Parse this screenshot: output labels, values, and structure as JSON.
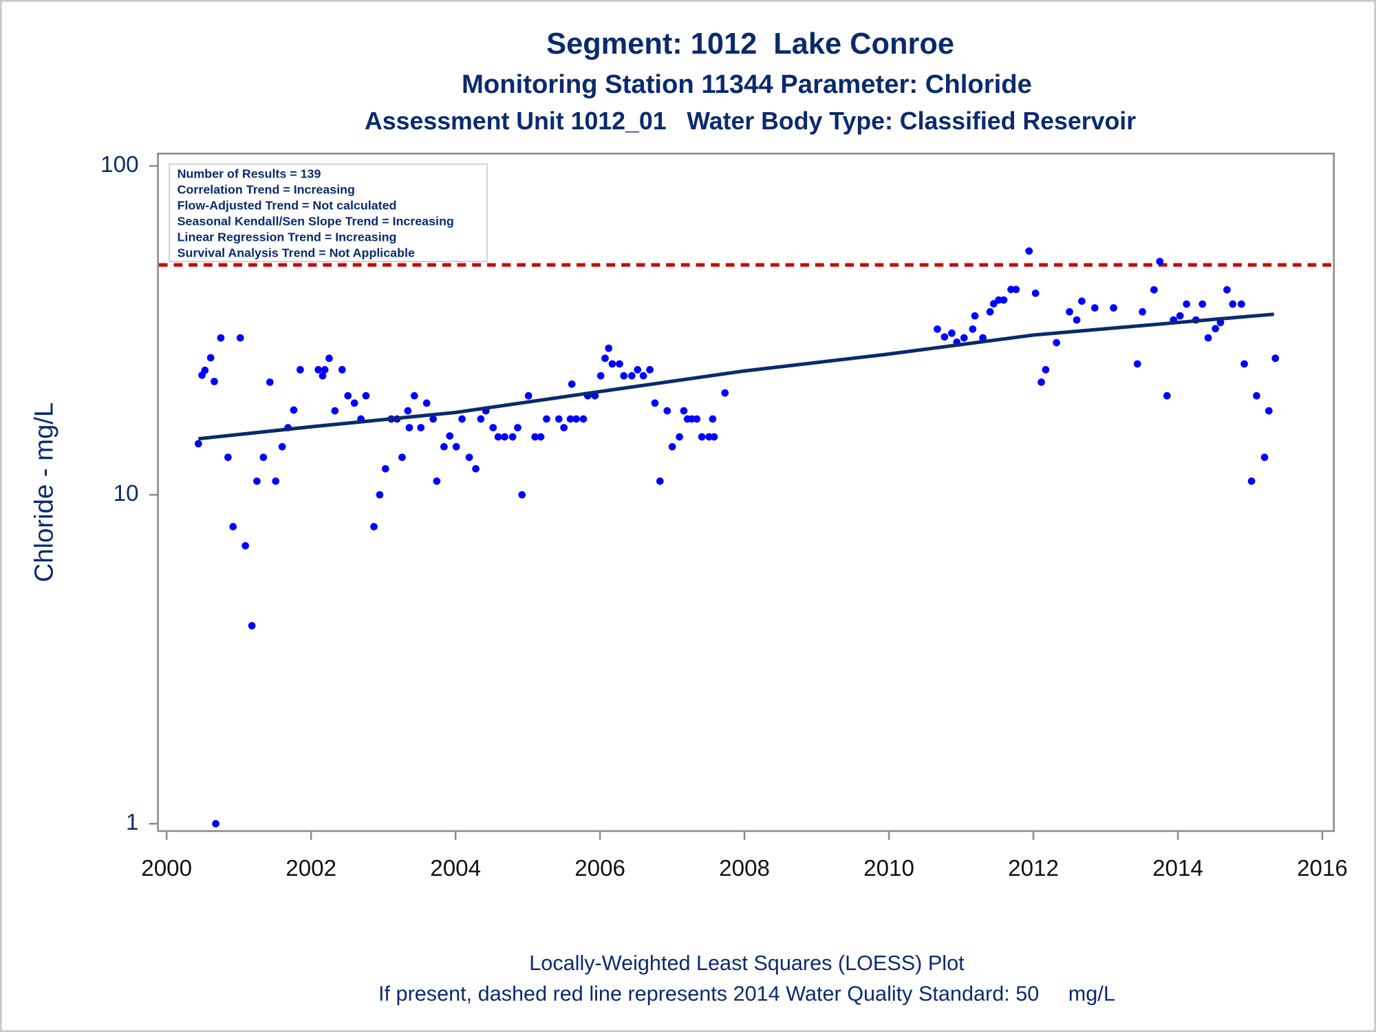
{
  "chart_data": {
    "type": "scatter",
    "title": "Segment: 1012  Lake Conroe",
    "subtitle": "Monitoring Station 11344 Parameter: Chloride",
    "subtitle2": "Assessment Unit 1012_01   Water Body Type: Classified Reservoir",
    "y_label": "Chloride - mg/L",
    "footnotes": [
      "Locally-Weighted Least Squares (LOESS) Plot",
      "If present, dashed red line represents 2014 Water Quality Standard: 50     mg/L"
    ],
    "info_box": [
      "Number of Results = 139",
      "Correlation Trend = Increasing",
      "Flow-Adjusted Trend = Not calculated",
      "Seasonal Kendall/Sen Slope Trend = Increasing",
      "Linear Regression Trend = Increasing",
      "Survival Analysis Trend = Not Applicable"
    ],
    "y_scale": "log",
    "xlim": [
      1999.88,
      2016.16
    ],
    "ylim": [
      0.95,
      109
    ],
    "xticks": [
      2000,
      2002,
      2004,
      2006,
      2008,
      2010,
      2012,
      2014,
      2016
    ],
    "yticks": [
      1,
      10,
      100
    ],
    "reference_line": {
      "value": 50,
      "color": "#cc0000",
      "style": "dashed"
    },
    "points": {
      "color": "#0000ff",
      "x": [
        2000.44,
        2000.49,
        2000.53,
        2000.61,
        2000.66,
        2000.68,
        2000.75,
        2000.85,
        2000.92,
        2001.02,
        2001.09,
        2001.18,
        2001.25,
        2001.34,
        2001.43,
        2001.51,
        2001.6,
        2001.68,
        2001.76,
        2001.85,
        2002.1,
        2002.16,
        2002.19,
        2002.25,
        2002.33,
        2002.43,
        2002.51,
        2002.6,
        2002.69,
        2002.76,
        2002.87,
        2002.95,
        2003.03,
        2003.11,
        2003.19,
        2003.26,
        2003.34,
        2003.36,
        2003.43,
        2003.52,
        2003.6,
        2003.69,
        2003.74,
        2003.84,
        2003.92,
        2004.01,
        2004.09,
        2004.19,
        2004.28,
        2004.35,
        2004.42,
        2004.52,
        2004.59,
        2004.68,
        2004.79,
        2004.86,
        2004.92,
        2005.01,
        2005.1,
        2005.18,
        2005.26,
        2005.43,
        2005.5,
        2005.59,
        2005.61,
        2005.67,
        2005.77,
        2005.83,
        2005.93,
        2006.01,
        2006.07,
        2006.12,
        2006.17,
        2006.27,
        2006.33,
        2006.44,
        2006.52,
        2006.6,
        2006.69,
        2006.76,
        2006.83,
        2006.93,
        2007.0,
        2007.1,
        2007.16,
        2007.21,
        2007.27,
        2007.34,
        2007.41,
        2007.51,
        2007.56,
        2007.58,
        2007.73,
        2010.67,
        2010.77,
        2010.87,
        2010.94,
        2011.04,
        2011.16,
        2011.19,
        2011.3,
        2011.4,
        2011.45,
        2011.52,
        2011.59,
        2011.69,
        2011.76,
        2011.94,
        2012.03,
        2012.11,
        2012.17,
        2012.32,
        2012.5,
        2012.6,
        2012.67,
        2012.85,
        2013.11,
        2013.44,
        2013.51,
        2013.67,
        2013.75,
        2013.85,
        2013.94,
        2014.03,
        2014.12,
        2014.25,
        2014.34,
        2014.42,
        2014.52,
        2014.59,
        2014.68,
        2014.76,
        2014.88,
        2014.92,
        2015.02,
        2015.09,
        2015.2,
        2015.26,
        2015.35
      ],
      "y": [
        14.3,
        23.1,
        23.9,
        26.1,
        22.1,
        1,
        30,
        13,
        8,
        30,
        7,
        4,
        11,
        13,
        22,
        11,
        14,
        16,
        18.1,
        24,
        24,
        23,
        24,
        26,
        18,
        24,
        20,
        19,
        17,
        20,
        8,
        10,
        12,
        17,
        17,
        13,
        18,
        16,
        20,
        16,
        19,
        17,
        11,
        14,
        15.1,
        14,
        17,
        13,
        12,
        17,
        18,
        16,
        15,
        15,
        15,
        16,
        10,
        20,
        15,
        15,
        17,
        17,
        16,
        17,
        21.7,
        17,
        17,
        20,
        20,
        23,
        26,
        27.9,
        25,
        25,
        23,
        23,
        24,
        23,
        24,
        19,
        11,
        18,
        14,
        15,
        18,
        17,
        17,
        17,
        15,
        15,
        17,
        15,
        20.4,
        31.9,
        30.2,
        31,
        29.1,
        30,
        31.9,
        35,
        30,
        36,
        38.1,
        39.1,
        39.1,
        42.1,
        42.1,
        55.1,
        41,
        22,
        24,
        29,
        36,
        34,
        38.8,
        37,
        37,
        25,
        36,
        42,
        51.2,
        20,
        34,
        35,
        38,
        34,
        38,
        30,
        32,
        33.4,
        42,
        38,
        38,
        25,
        11,
        20,
        13,
        18,
        26
      ]
    },
    "trend": {
      "color": "#0a2a6a",
      "x": [
        2000.44,
        2002,
        2004,
        2006,
        2008,
        2010,
        2012,
        2014,
        2015.33
      ],
      "y": [
        14.8,
        16.1,
        17.8,
        20.6,
        23.8,
        26.8,
        30.6,
        33.4,
        35.4
      ]
    }
  }
}
